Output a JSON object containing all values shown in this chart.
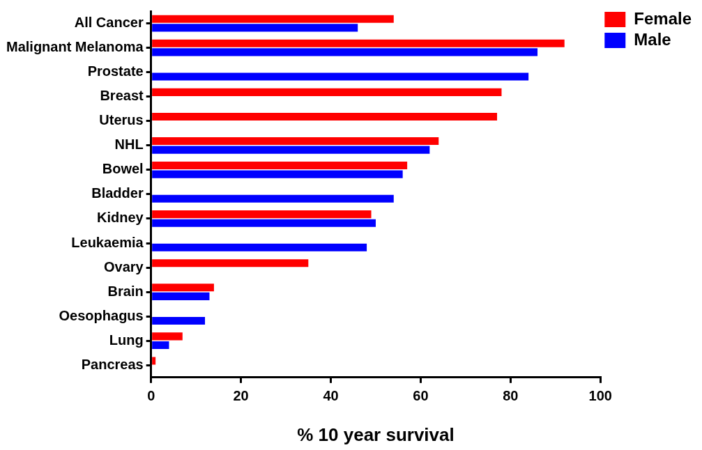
{
  "chart_data": {
    "type": "bar",
    "orientation": "horizontal",
    "xlabel": "% 10 year survival",
    "categories": [
      "All Cancer",
      "Malignant Melanoma",
      "Prostate",
      "Breast",
      "Uterus",
      "NHL",
      "Bowel",
      "Bladder",
      "Kidney",
      "Leukaemia",
      "Ovary",
      "Brain",
      "Oesophagus",
      "Lung",
      "Pancreas"
    ],
    "series": [
      {
        "name": "Female",
        "color": "#ff0000",
        "values": [
          54,
          92,
          null,
          78,
          77,
          64,
          57,
          null,
          49,
          null,
          35,
          14,
          null,
          7,
          1
        ]
      },
      {
        "name": "Male",
        "color": "#0000ff",
        "values": [
          46,
          86,
          84,
          null,
          null,
          62,
          56,
          54,
          50,
          48,
          null,
          13,
          12,
          4,
          null
        ]
      }
    ],
    "xlim": [
      0,
      100
    ],
    "xticks": [
      0,
      20,
      40,
      60,
      80,
      100
    ],
    "grid": false,
    "legend": "top right"
  }
}
